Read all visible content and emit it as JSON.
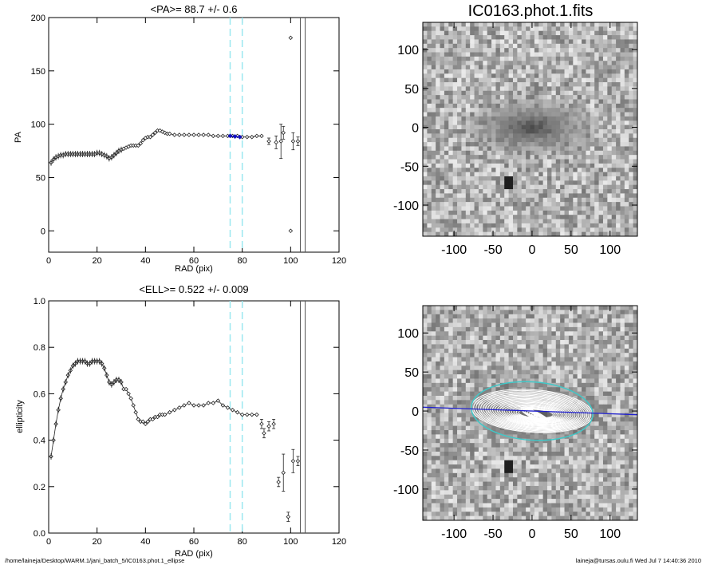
{
  "footer": {
    "path": "/home/laineja/Desktop/WARM.1/jani_batch_5/IC0163.phot.1_ellipse",
    "user_time": "laineja@tursas.oulu.fi  Wed Jul  7 14:40:36 2010"
  },
  "colors": {
    "axis": "#000000",
    "dashed": "#9be8f0",
    "highlight": "#1010c0",
    "points": "#222222"
  },
  "chart_data": [
    {
      "type": "scatter",
      "title": "<PA>=  88.7 +/-   0.6",
      "xlabel": "RAD (pix)",
      "ylabel": "PA",
      "xlim": [
        0,
        120
      ],
      "ylim": [
        -20,
        200
      ],
      "xticks": [
        "0",
        "20",
        "40",
        "60",
        "80",
        "100",
        "120"
      ],
      "yticks": [
        "0",
        "50",
        "100",
        "150",
        "200"
      ],
      "dashed_vlines": [
        75,
        80
      ],
      "solid_vlines": [
        104,
        106
      ],
      "series": [
        {
          "role": "data",
          "x": [
            1,
            2,
            3,
            4,
            5,
            6,
            7,
            8,
            9,
            10,
            11,
            12,
            13,
            14,
            15,
            16,
            17,
            18,
            19,
            20,
            21,
            22,
            23,
            24,
            25,
            26,
            27,
            28,
            29,
            30,
            31,
            32,
            33,
            34,
            35,
            36,
            37,
            38,
            39,
            40,
            41,
            42,
            43,
            44,
            45,
            46,
            47,
            48,
            49,
            50,
            52,
            54,
            56,
            58,
            60,
            62,
            64,
            66,
            68,
            70,
            72,
            74,
            76,
            78,
            80,
            82,
            84,
            86,
            88
          ],
          "y": [
            64,
            67,
            69,
            70,
            71,
            71,
            72,
            72,
            72,
            72,
            72,
            72,
            72,
            72,
            72,
            72,
            72,
            72,
            72,
            73,
            73,
            72,
            71,
            70,
            68,
            69,
            71,
            73,
            75,
            76,
            77,
            78,
            79,
            80,
            80,
            80,
            80,
            82,
            85,
            87,
            88,
            88,
            90,
            92,
            94,
            94,
            93,
            92,
            91,
            91,
            90,
            90,
            90,
            90,
            90,
            90,
            90,
            90,
            89,
            89,
            89,
            89,
            89,
            89,
            88,
            88,
            88,
            89,
            89
          ]
        },
        {
          "role": "fit_range",
          "x": [
            75,
            77,
            79
          ],
          "y": [
            89,
            88.5,
            88
          ]
        },
        {
          "role": "outer",
          "x": [
            91,
            94,
            96,
            97,
            100,
            101,
            103
          ],
          "y": [
            84,
            83,
            84,
            92,
            0,
            84,
            84
          ],
          "err": [
            3,
            6,
            16,
            6,
            0,
            8,
            4
          ]
        },
        {
          "role": "outlier",
          "x": [
            100
          ],
          "y": [
            181
          ]
        }
      ]
    },
    {
      "type": "scatter",
      "title": "<ELL>= 0.522 +/-  0.009",
      "xlabel": "RAD (pix)",
      "ylabel": "ellipticity",
      "xlim": [
        0,
        120
      ],
      "ylim": [
        0.0,
        1.0
      ],
      "xticks": [
        "0",
        "20",
        "40",
        "60",
        "80",
        "100",
        "120"
      ],
      "yticks": [
        "0.0",
        "0.2",
        "0.4",
        "0.6",
        "0.8",
        "1.0"
      ],
      "dashed_vlines": [
        75,
        80
      ],
      "solid_vlines": [
        104,
        106
      ],
      "series": [
        {
          "role": "data",
          "x": [
            1,
            2,
            3,
            4,
            5,
            6,
            7,
            8,
            9,
            10,
            11,
            12,
            13,
            14,
            15,
            16,
            17,
            18,
            19,
            20,
            21,
            22,
            23,
            24,
            25,
            26,
            27,
            28,
            29,
            30,
            31,
            32,
            33,
            34,
            35,
            36,
            37,
            38,
            39,
            40,
            41,
            42,
            43,
            44,
            45,
            46,
            47,
            48,
            50,
            52,
            54,
            56,
            58,
            60,
            62,
            64,
            66,
            68,
            70,
            72,
            74,
            76,
            78,
            80,
            82,
            84,
            86
          ],
          "y": [
            0.33,
            0.4,
            0.47,
            0.53,
            0.58,
            0.62,
            0.65,
            0.68,
            0.7,
            0.72,
            0.73,
            0.74,
            0.74,
            0.74,
            0.74,
            0.73,
            0.73,
            0.74,
            0.74,
            0.74,
            0.74,
            0.73,
            0.71,
            0.68,
            0.65,
            0.64,
            0.65,
            0.66,
            0.66,
            0.65,
            0.62,
            0.62,
            0.6,
            0.58,
            0.55,
            0.52,
            0.49,
            0.48,
            0.48,
            0.47,
            0.48,
            0.49,
            0.49,
            0.5,
            0.5,
            0.51,
            0.51,
            0.51,
            0.52,
            0.53,
            0.54,
            0.55,
            0.56,
            0.55,
            0.55,
            0.55,
            0.56,
            0.56,
            0.57,
            0.55,
            0.54,
            0.53,
            0.52,
            0.51,
            0.51,
            0.51,
            0.51
          ]
        },
        {
          "role": "outer",
          "x": [
            88,
            89,
            91,
            93,
            95,
            97,
            99,
            101,
            103
          ],
          "y": [
            0.47,
            0.43,
            0.46,
            0.47,
            0.22,
            0.26,
            0.07,
            0.31,
            0.31
          ],
          "err": [
            0.02,
            0.02,
            0.02,
            0.02,
            0.02,
            0.08,
            0.02,
            0.05,
            0.02
          ]
        }
      ]
    },
    {
      "type": "heatmap",
      "title": "IC0163.phot.1.fits",
      "xlim": [
        -140,
        135
      ],
      "ylim": [
        -140,
        135
      ],
      "xticks": [
        "-100",
        "-50",
        "0",
        "50",
        "100"
      ],
      "yticks": [
        "-100",
        "-50",
        "0",
        "50",
        "100"
      ],
      "galaxy": {
        "center": [
          0,
          0
        ],
        "semi_major": 80,
        "semi_minor": 36,
        "pa_deg": 88.7,
        "star": [
          -30,
          -70
        ]
      }
    },
    {
      "type": "heatmap",
      "title": "",
      "xlim": [
        -140,
        135
      ],
      "ylim": [
        -140,
        135
      ],
      "xticks": [
        "-100",
        "-50",
        "0",
        "50",
        "100"
      ],
      "yticks": [
        "-100",
        "-50",
        "0",
        "50",
        "100"
      ],
      "isophotes": {
        "count": 28,
        "max_sma": 78,
        "highlight_sma": 78,
        "ellipticity": 0.522,
        "line_slope_deg": -2
      }
    }
  ]
}
